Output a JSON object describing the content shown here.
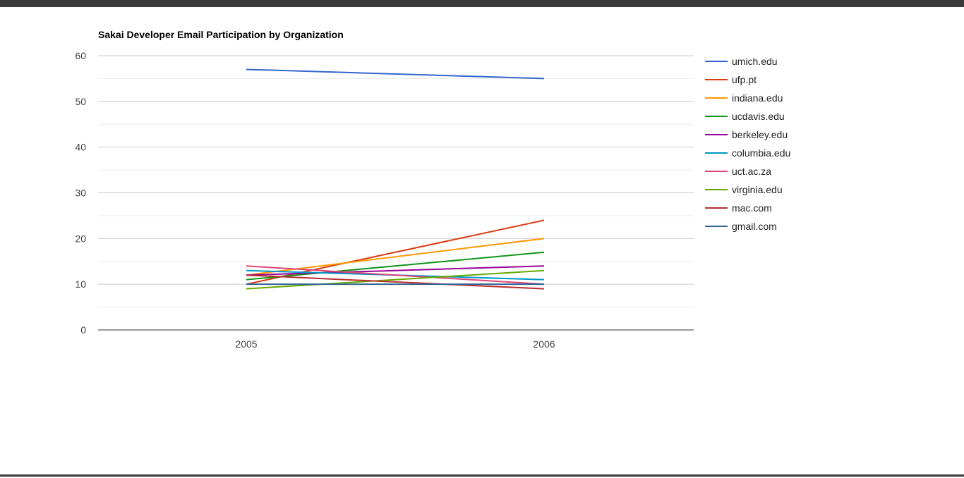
{
  "chart_data": {
    "type": "line",
    "title": "Sakai Developer Email Participation by Organization",
    "xlabel": "",
    "ylabel": "",
    "x": [
      "2005",
      "2006"
    ],
    "ylim": [
      0,
      60
    ],
    "yticks": [
      0,
      10,
      20,
      30,
      40,
      50,
      60
    ],
    "grid": true,
    "legend_position": "right",
    "series": [
      {
        "name": "umich.edu",
        "color": "#3366cc",
        "values": [
          57,
          55
        ]
      },
      {
        "name": "ufp.pt",
        "color": "#dc3912",
        "values": [
          10,
          24
        ]
      },
      {
        "name": "indiana.edu",
        "color": "#ff9900",
        "values": [
          12,
          20
        ]
      },
      {
        "name": "ucdavis.edu",
        "color": "#109618",
        "values": [
          11,
          17
        ]
      },
      {
        "name": "berkeley.edu",
        "color": "#990099",
        "values": [
          12,
          14
        ]
      },
      {
        "name": "columbia.edu",
        "color": "#0099c6",
        "values": [
          13,
          11
        ]
      },
      {
        "name": "uct.ac.za",
        "color": "#dd4477",
        "values": [
          14,
          10
        ]
      },
      {
        "name": "virginia.edu",
        "color": "#66aa00",
        "values": [
          9,
          13
        ]
      },
      {
        "name": "mac.com",
        "color": "#b82e2e",
        "values": [
          12,
          9
        ]
      },
      {
        "name": "gmail.com",
        "color": "#316395",
        "values": [
          10,
          10
        ]
      }
    ]
  }
}
